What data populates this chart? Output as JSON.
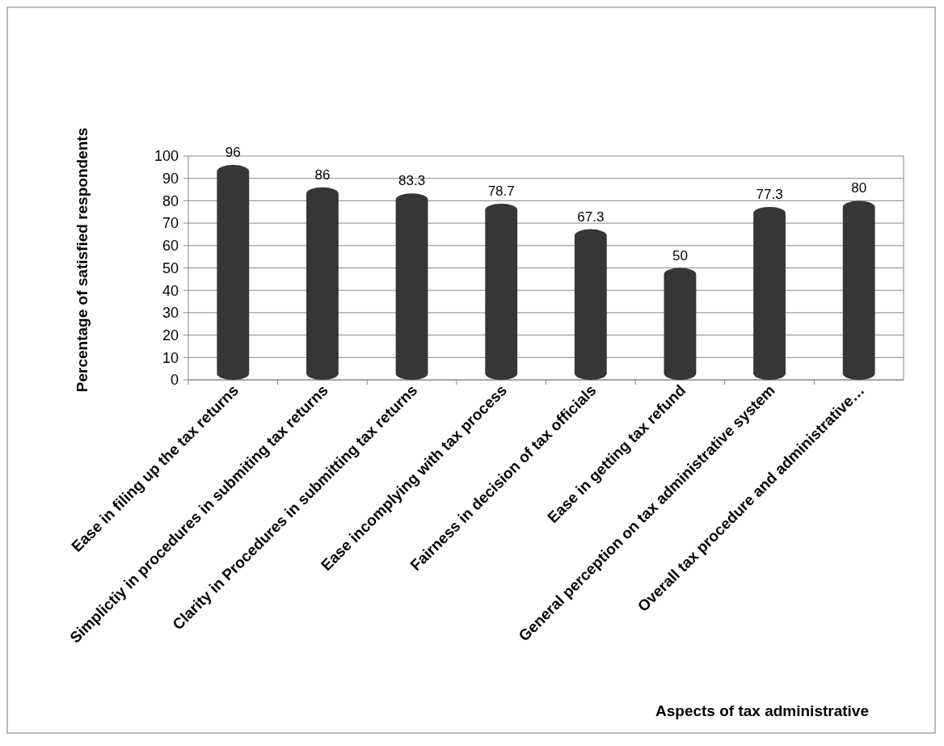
{
  "chart_data": {
    "type": "bar",
    "annotations": [
      "Aspects of tax administrative"
    ],
    "ylabel": "Percentage of satisfied  respondents",
    "categories": [
      "Ease in filing up the tax returns",
      "Simplictiy in procedures in submiting tax returns",
      "Clarity in Procedures in submitting tax returns",
      "Ease incomplying with tax process",
      "Fairness in decision of tax officials",
      "Ease in getting tax refund",
      "General perception on tax administrative system",
      "Overall tax procedure and administrative…"
    ],
    "values": [
      96,
      86,
      83.3,
      78.7,
      67.3,
      50,
      77.3,
      80
    ],
    "color": "#363636",
    "ylim": [
      0,
      100
    ],
    "yticks": [
      0,
      10,
      20,
      30,
      40,
      50,
      60,
      70,
      80,
      90,
      100
    ],
    "grid": "y",
    "data_labels": true
  }
}
